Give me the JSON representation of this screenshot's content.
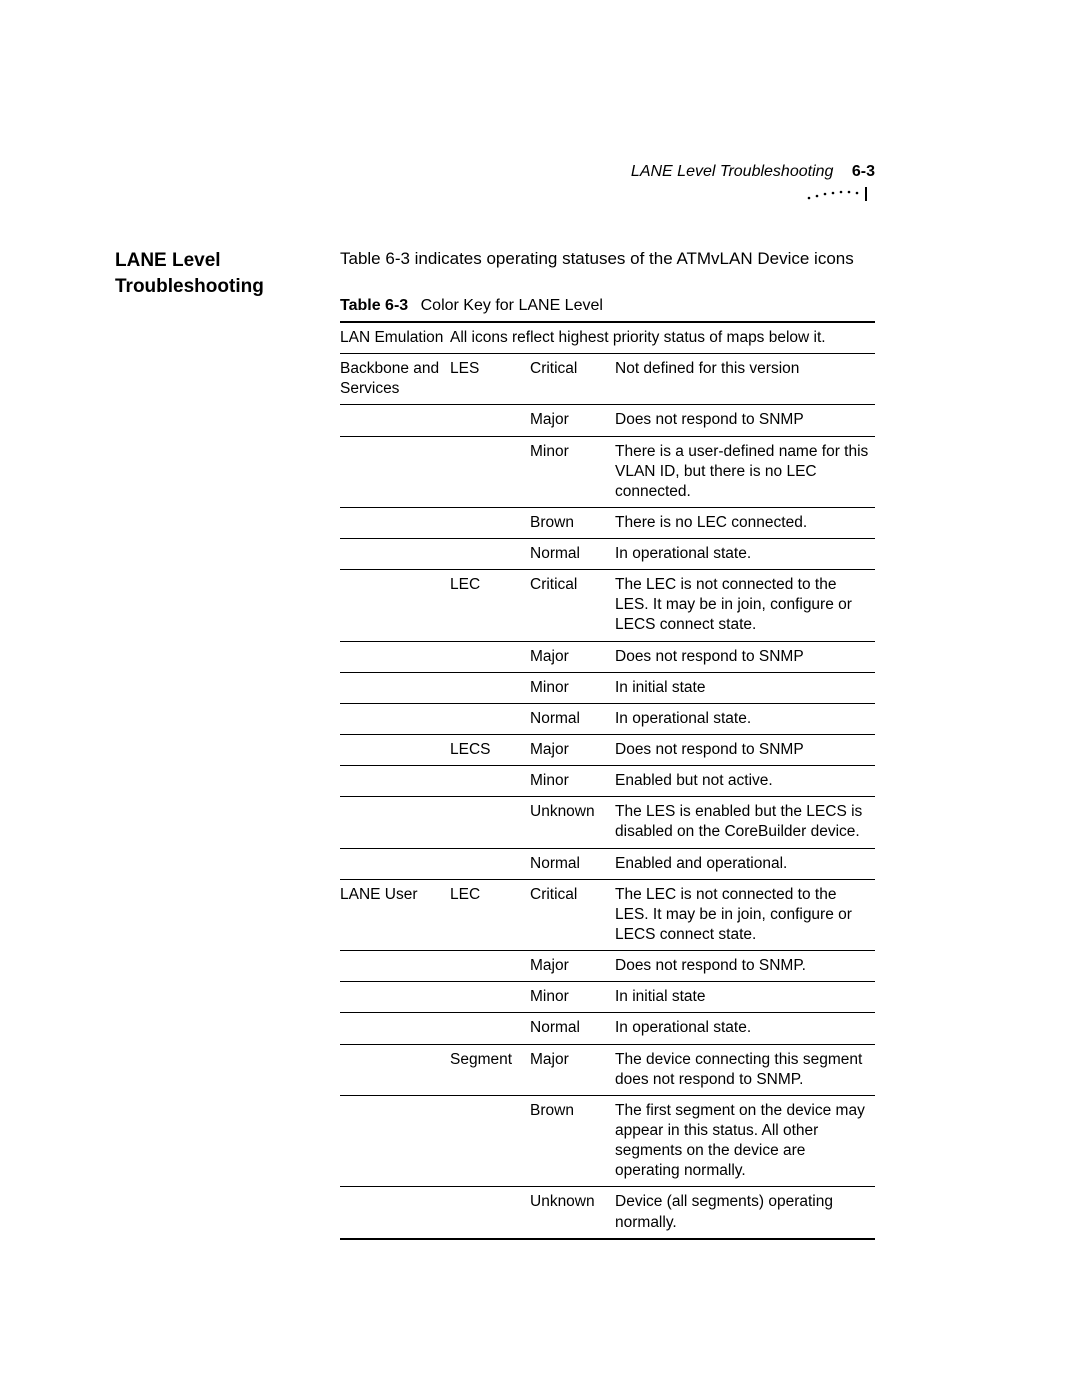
{
  "header": {
    "running_title": "LANE Level Troubleshooting",
    "page_number": "6-3"
  },
  "section": {
    "heading_line1": "LANE Level",
    "heading_line2": "Troubleshooting",
    "intro": "Table 6-3 indicates operating statuses of the ATMvLAN Device icons"
  },
  "table": {
    "caption_label": "Table 6-3",
    "caption_text": "Color Key for LANE Level",
    "rows": [
      {
        "cat": "LAN Emulation",
        "sub": "",
        "level": "",
        "desc": "All icons reflect highest priority status of maps below it.",
        "top": "heavy",
        "merge_desc": true
      },
      {
        "cat": "Backbone and Services",
        "sub": "LES",
        "level": "Critical",
        "desc": "Not defined for this version",
        "top": "thin"
      },
      {
        "cat": "",
        "sub": "",
        "level": "Major",
        "desc": "Does not respond to SNMP",
        "top": "thin"
      },
      {
        "cat": "",
        "sub": "",
        "level": "Minor",
        "desc": "There is a user-defined name for this VLAN ID, but there is no LEC connected.",
        "top": "thin"
      },
      {
        "cat": "",
        "sub": "",
        "level": "Brown",
        "desc": "There is no LEC connected.",
        "top": "thin"
      },
      {
        "cat": "",
        "sub": "",
        "level": "Normal",
        "desc": "In operational state.",
        "top": "thin"
      },
      {
        "cat": "",
        "sub": "LEC",
        "level": "Critical",
        "desc": "The LEC is not connected to the LES. It may be in join, configure or LECS connect state.",
        "top": "thin"
      },
      {
        "cat": "",
        "sub": "",
        "level": "Major",
        "desc": "Does not respond to SNMP",
        "top": "thin"
      },
      {
        "cat": "",
        "sub": "",
        "level": "Minor",
        "desc": "In initial state",
        "top": "thin"
      },
      {
        "cat": "",
        "sub": "",
        "level": "Normal",
        "desc": "In operational state.",
        "top": "thin"
      },
      {
        "cat": "",
        "sub": "LECS",
        "level": "Major",
        "desc": "Does not respond to SNMP",
        "top": "thin"
      },
      {
        "cat": "",
        "sub": "",
        "level": "Minor",
        "desc": "Enabled but not active.",
        "top": "thin"
      },
      {
        "cat": "",
        "sub": "",
        "level": "Unknown",
        "desc": "The LES is enabled but the LECS is disabled on the CoreBuilder device.",
        "top": "thin"
      },
      {
        "cat": "",
        "sub": "",
        "level": "Normal",
        "desc": "Enabled and operational.",
        "top": "thin"
      },
      {
        "cat": "LANE User",
        "sub": "LEC",
        "level": "Critical",
        "desc": "The LEC is not connected to the LES. It may be in join, configure or LECS connect state.",
        "top": "thin"
      },
      {
        "cat": "",
        "sub": "",
        "level": "Major",
        "desc": "Does not respond to SNMP.",
        "top": "thin"
      },
      {
        "cat": "",
        "sub": "",
        "level": "Minor",
        "desc": "In initial state",
        "top": "thin"
      },
      {
        "cat": "",
        "sub": "",
        "level": "Normal",
        "desc": "In operational state.",
        "top": "thin"
      },
      {
        "cat": "",
        "sub": "Segment",
        "level": "Major",
        "desc": "The device connecting this segment does not respond to SNMP.",
        "top": "thin"
      },
      {
        "cat": "",
        "sub": "",
        "level": "Brown",
        "desc": "The first segment on the device may appear in this status. All other segments on the device are operating normally.",
        "top": "thin"
      },
      {
        "cat": "",
        "sub": "",
        "level": "Unknown",
        "desc": "Device (all segments) operating normally.",
        "top": "thin",
        "bottom": "heavy"
      }
    ]
  }
}
